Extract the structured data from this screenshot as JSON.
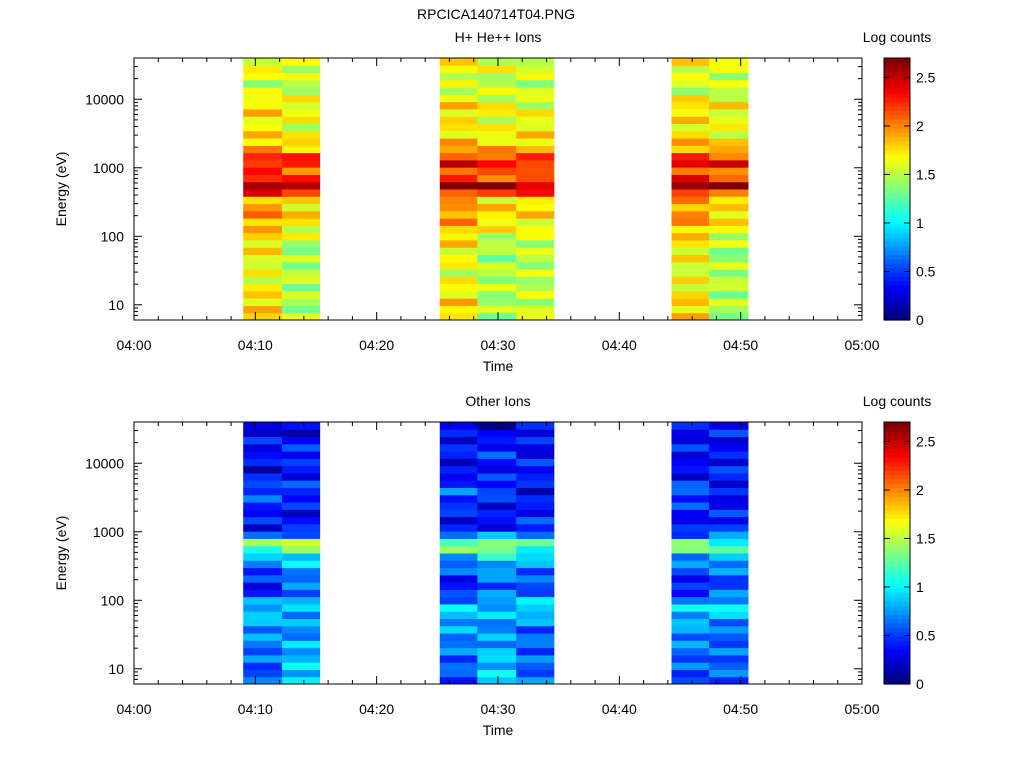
{
  "page_title": "RPCICA140714T04.PNG",
  "colorbar_label": "Log counts",
  "colorbar_ticks": [
    "0",
    "0.5",
    "1",
    "1.5",
    "2",
    "2.5"
  ],
  "chart_data": [
    {
      "type": "heatmap",
      "title": "H+ He++ Ions",
      "xlabel": "Time",
      "ylabel": "Energy (eV)",
      "x_tick_labels": [
        "04:00",
        "04:10",
        "04:20",
        "04:30",
        "04:40",
        "04:50",
        "05:00"
      ],
      "y_tick_labels": [
        "10",
        "100",
        "1000",
        "10000"
      ],
      "y_scale": "log",
      "ylim": [
        6,
        40000
      ],
      "xlim_minutes": [
        0,
        60
      ],
      "zlim": [
        0,
        2.7
      ],
      "colormap": "jet",
      "time_bins": [
        {
          "start": 9.0,
          "end": 12.2,
          "profile": "h_a"
        },
        {
          "start": 12.2,
          "end": 15.3,
          "profile": "h_b"
        },
        {
          "start": 25.2,
          "end": 28.3,
          "profile": "h_a"
        },
        {
          "start": 28.3,
          "end": 31.5,
          "profile": "h_b"
        },
        {
          "start": 31.5,
          "end": 34.6,
          "profile": "h_c"
        },
        {
          "start": 44.3,
          "end": 47.4,
          "profile": "h_a"
        },
        {
          "start": 47.4,
          "end": 50.6,
          "profile": "h_b"
        }
      ],
      "energy_profiles": {
        "h_a": [
          {
            "e": 10,
            "v": 1.8
          },
          {
            "e": 30,
            "v": 1.6
          },
          {
            "e": 60,
            "v": 1.7
          },
          {
            "e": 110,
            "v": 1.8
          },
          {
            "e": 200,
            "v": 2.0
          },
          {
            "e": 350,
            "v": 1.9
          },
          {
            "e": 550,
            "v": 2.7
          },
          {
            "e": 800,
            "v": 2.1
          },
          {
            "e": 1200,
            "v": 2.4
          },
          {
            "e": 2000,
            "v": 1.9
          },
          {
            "e": 4000,
            "v": 1.7
          },
          {
            "e": 8000,
            "v": 1.8
          },
          {
            "e": 15000,
            "v": 1.5
          },
          {
            "e": 30000,
            "v": 1.7
          }
        ],
        "h_b": [
          {
            "e": 10,
            "v": 1.45
          },
          {
            "e": 30,
            "v": 1.5
          },
          {
            "e": 60,
            "v": 1.4
          },
          {
            "e": 110,
            "v": 1.6
          },
          {
            "e": 200,
            "v": 1.8
          },
          {
            "e": 350,
            "v": 1.7
          },
          {
            "e": 550,
            "v": 2.7
          },
          {
            "e": 800,
            "v": 1.9
          },
          {
            "e": 1200,
            "v": 2.4
          },
          {
            "e": 2000,
            "v": 1.8
          },
          {
            "e": 4000,
            "v": 1.6
          },
          {
            "e": 8000,
            "v": 1.7
          },
          {
            "e": 15000,
            "v": 1.5
          },
          {
            "e": 30000,
            "v": 1.6
          }
        ],
        "h_c": [
          {
            "e": 10,
            "v": 1.55
          },
          {
            "e": 30,
            "v": 1.5
          },
          {
            "e": 60,
            "v": 1.5
          },
          {
            "e": 110,
            "v": 1.6
          },
          {
            "e": 200,
            "v": 1.75
          },
          {
            "e": 350,
            "v": 1.8
          },
          {
            "e": 550,
            "v": 2.6
          },
          {
            "e": 800,
            "v": 1.9
          },
          {
            "e": 1200,
            "v": 2.4
          },
          {
            "e": 2000,
            "v": 1.8
          },
          {
            "e": 4000,
            "v": 1.7
          },
          {
            "e": 8000,
            "v": 1.6
          },
          {
            "e": 15000,
            "v": 1.5
          },
          {
            "e": 30000,
            "v": 1.6
          }
        ]
      }
    },
    {
      "type": "heatmap",
      "title": "Other Ions",
      "xlabel": "Time",
      "ylabel": "Energy (eV)",
      "x_tick_labels": [
        "04:00",
        "04:10",
        "04:20",
        "04:30",
        "04:40",
        "04:50",
        "05:00"
      ],
      "y_tick_labels": [
        "10",
        "100",
        "1000",
        "10000"
      ],
      "y_scale": "log",
      "ylim": [
        6,
        40000
      ],
      "xlim_minutes": [
        0,
        60
      ],
      "zlim": [
        0,
        2.7
      ],
      "colormap": "jet",
      "time_bins": [
        {
          "start": 9.0,
          "end": 12.2,
          "profile": "o_a"
        },
        {
          "start": 12.2,
          "end": 15.3,
          "profile": "o_b"
        },
        {
          "start": 25.2,
          "end": 28.3,
          "profile": "o_a"
        },
        {
          "start": 28.3,
          "end": 31.5,
          "profile": "o_b"
        },
        {
          "start": 31.5,
          "end": 34.6,
          "profile": "o_c"
        },
        {
          "start": 44.3,
          "end": 47.4,
          "profile": "o_a"
        },
        {
          "start": 47.4,
          "end": 50.6,
          "profile": "o_c"
        }
      ],
      "energy_profiles": {
        "o_a": [
          {
            "e": 10,
            "v": 0.55
          },
          {
            "e": 40,
            "v": 0.75
          },
          {
            "e": 80,
            "v": 0.9
          },
          {
            "e": 150,
            "v": 0.3
          },
          {
            "e": 250,
            "v": 0.5
          },
          {
            "e": 450,
            "v": 0.8
          },
          {
            "e": 650,
            "v": 1.6
          },
          {
            "e": 1000,
            "v": 0.3
          },
          {
            "e": 2000,
            "v": 0.4
          },
          {
            "e": 4000,
            "v": 0.6
          },
          {
            "e": 8000,
            "v": 0.25
          },
          {
            "e": 15000,
            "v": 0.4
          },
          {
            "e": 30000,
            "v": 0.3
          }
        ],
        "o_b": [
          {
            "e": 10,
            "v": 0.9
          },
          {
            "e": 40,
            "v": 0.7
          },
          {
            "e": 80,
            "v": 0.85
          },
          {
            "e": 150,
            "v": 0.6
          },
          {
            "e": 250,
            "v": 0.7
          },
          {
            "e": 450,
            "v": 1.0
          },
          {
            "e": 650,
            "v": 1.7
          },
          {
            "e": 1000,
            "v": 0.4
          },
          {
            "e": 2000,
            "v": 0.3
          },
          {
            "e": 4000,
            "v": 0.5
          },
          {
            "e": 8000,
            "v": 0.35
          },
          {
            "e": 15000,
            "v": 0.5
          },
          {
            "e": 30000,
            "v": 0.2
          }
        ],
        "o_c": [
          {
            "e": 10,
            "v": 0.6
          },
          {
            "e": 40,
            "v": 0.6
          },
          {
            "e": 80,
            "v": 1.0
          },
          {
            "e": 150,
            "v": 0.5
          },
          {
            "e": 250,
            "v": 0.6
          },
          {
            "e": 450,
            "v": 0.9
          },
          {
            "e": 650,
            "v": 1.3
          },
          {
            "e": 1000,
            "v": 0.5
          },
          {
            "e": 2000,
            "v": 0.4
          },
          {
            "e": 4000,
            "v": 0.3
          },
          {
            "e": 8000,
            "v": 0.45
          },
          {
            "e": 15000,
            "v": 0.3
          },
          {
            "e": 30000,
            "v": 0.4
          }
        ]
      }
    }
  ]
}
